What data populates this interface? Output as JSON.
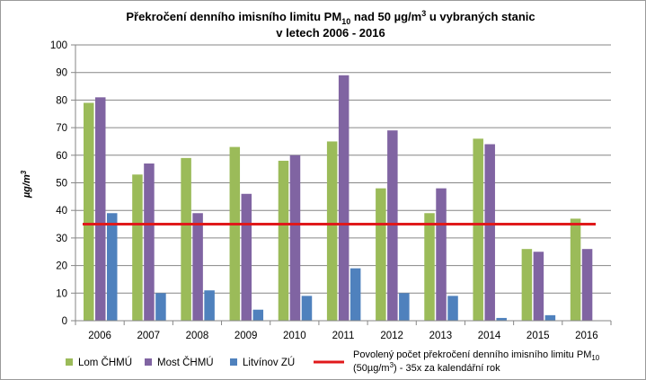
{
  "chart_data": {
    "type": "bar",
    "title": {
      "line1": "Překročení denního imisního limitu PM",
      "line1_sub": "10",
      "line1_rest": " nad 50 µg/m",
      "line1_sup": "3",
      "line1_end": " u vybraných stanic",
      "line2": "v letech 2006  - 2016"
    },
    "ylabel": "µg/m",
    "ylabel_sup": "3",
    "ylim": [
      0,
      100
    ],
    "yticks": [
      0,
      10,
      20,
      30,
      40,
      50,
      60,
      70,
      80,
      90,
      100
    ],
    "grid": true,
    "categories": [
      "2006",
      "2007",
      "2008",
      "2009",
      "2010",
      "2011",
      "2012",
      "2013",
      "2014",
      "2015",
      "2016"
    ],
    "series": [
      {
        "name": "Lom ČHMÚ",
        "color": "#9bbb59",
        "values": [
          79,
          53,
          59,
          63,
          58,
          65,
          48,
          39,
          66,
          26,
          37
        ]
      },
      {
        "name": "Most ČHMÚ",
        "color": "#8064a2",
        "values": [
          81,
          57,
          39,
          46,
          60,
          89,
          69,
          48,
          64,
          25,
          26
        ]
      },
      {
        "name": "Litvínov ZÚ",
        "color": "#4f81bd",
        "values": [
          39,
          10,
          11,
          4,
          9,
          19,
          10,
          9,
          1,
          2,
          null
        ]
      }
    ],
    "limit_line": {
      "value": 35,
      "color": "#e0191b",
      "label_line1": "Povolený počet překročení denního imisního limitu PM",
      "label_line1_sub": "10",
      "label_line2": "(50µg/m",
      "label_line2_sup": "3",
      "label_line2_end": ") - 35x za kalendářní rok"
    },
    "legend_position": "bottom"
  }
}
